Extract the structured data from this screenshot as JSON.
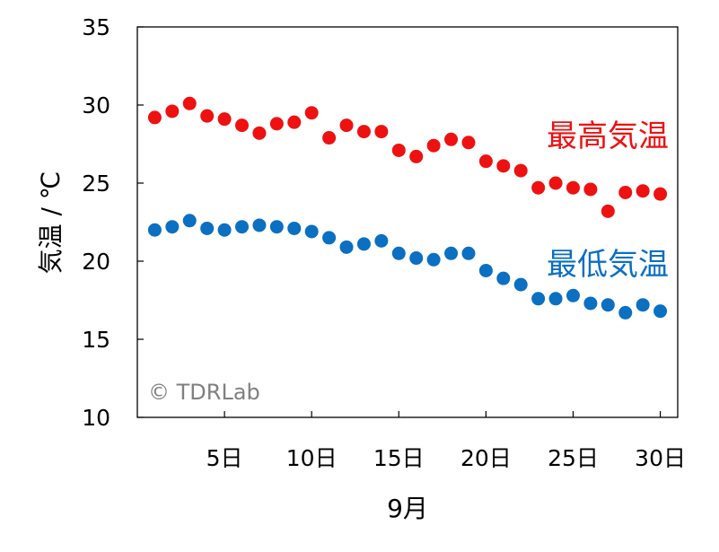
{
  "chart_data": {
    "type": "scatter",
    "title": "",
    "xlabel": "9月",
    "ylabel": "気温 / ℃",
    "xlim": [
      0,
      31
    ],
    "ylim": [
      10,
      35
    ],
    "x_ticks": [
      {
        "value": 5,
        "label": "5日"
      },
      {
        "value": 10,
        "label": "10日"
      },
      {
        "value": 15,
        "label": "15日"
      },
      {
        "value": 20,
        "label": "20日"
      },
      {
        "value": 25,
        "label": "25日"
      },
      {
        "value": 30,
        "label": "30日"
      }
    ],
    "y_ticks": [
      10,
      15,
      20,
      25,
      30,
      35
    ],
    "grid": false,
    "legend": "inline",
    "watermark": "© TDRLab",
    "series": [
      {
        "name": "最高気温",
        "color": "#ee1111",
        "x": [
          1,
          2,
          3,
          4,
          5,
          6,
          7,
          8,
          9,
          10,
          11,
          12,
          13,
          14,
          15,
          16,
          17,
          18,
          19,
          20,
          21,
          22,
          23,
          24,
          25,
          26,
          27,
          28,
          29,
          30
        ],
        "y": [
          29.2,
          29.6,
          30.1,
          29.3,
          29.1,
          28.7,
          28.2,
          28.8,
          28.9,
          29.5,
          27.9,
          28.7,
          28.3,
          28.3,
          27.1,
          26.7,
          27.4,
          27.8,
          27.6,
          26.4,
          26.1,
          25.8,
          24.7,
          25.0,
          24.7,
          24.6,
          23.2,
          24.4,
          24.5,
          24.3
        ]
      },
      {
        "name": "最低気温",
        "color": "#0b6fc2",
        "x": [
          1,
          2,
          3,
          4,
          5,
          6,
          7,
          8,
          9,
          10,
          11,
          12,
          13,
          14,
          15,
          16,
          17,
          18,
          19,
          20,
          21,
          22,
          23,
          24,
          25,
          26,
          27,
          28,
          29,
          30
        ],
        "y": [
          22.0,
          22.2,
          22.6,
          22.1,
          22.0,
          22.2,
          22.3,
          22.2,
          22.1,
          21.9,
          21.5,
          20.9,
          21.1,
          21.3,
          20.5,
          20.2,
          20.1,
          20.5,
          20.5,
          19.4,
          18.9,
          18.5,
          17.6,
          17.6,
          17.8,
          17.3,
          17.2,
          16.7,
          17.2,
          16.8
        ]
      }
    ]
  }
}
